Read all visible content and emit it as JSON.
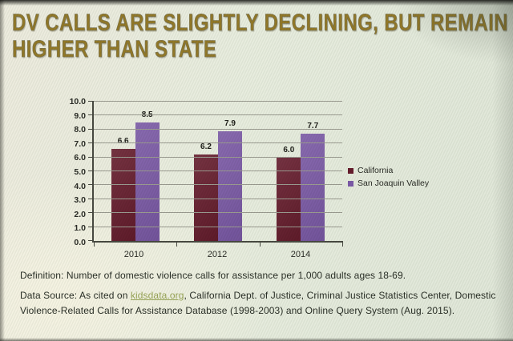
{
  "slide": {
    "title": "DV CALLS ARE SLIGHTLY DECLINING, BUT REMAIN HIGHER THAN STATE",
    "title_color": "#8d721f",
    "background_color": "#e7ecdd",
    "definition_text": "Definition: Number of domestic violence calls for assistance per 1,000 adults ages 18-69.",
    "source_prefix": "Data Source: As cited on ",
    "source_link": "kidsdata.org",
    "source_suffix": ", California Dept. of Justice, Criminal Justice Statistics Center, Domestic Violence-Related Calls for Assistance Database (1998-2003) and Online Query System (Aug. 2015).",
    "link_color": "#94a04f"
  },
  "chart_data": {
    "type": "bar",
    "categories": [
      "2010",
      "2012",
      "2014"
    ],
    "series": [
      {
        "name": "California",
        "color": "#5e1022",
        "values": [
          6.6,
          6.2,
          6.0
        ]
      },
      {
        "name": "San Joaquin Valley",
        "color": "#7551a3",
        "values": [
          8.5,
          7.9,
          7.7
        ]
      }
    ],
    "ylim": [
      0,
      10
    ],
    "ytick_labels": [
      "0.0",
      "1.0",
      "2.0",
      "3.0",
      "4.0",
      "5.0",
      "6.0",
      "7.0",
      "8.0",
      "9.0",
      "10.0"
    ],
    "grid": true,
    "value_labels": true,
    "value_label_format": "one_decimal",
    "legend_position": "right",
    "xlabel": "",
    "ylabel": ""
  }
}
